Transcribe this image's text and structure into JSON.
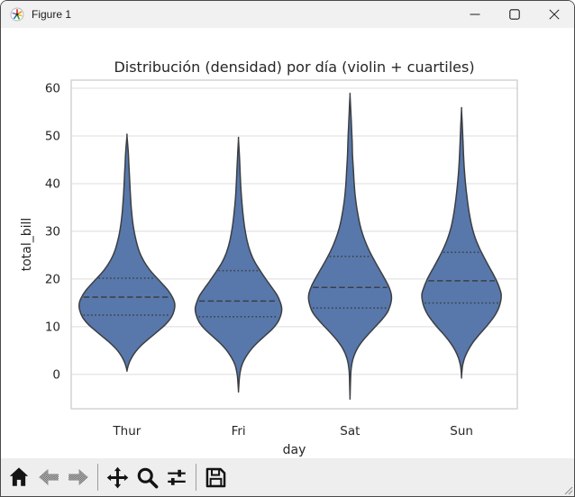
{
  "window": {
    "title": "Figure 1",
    "icons": [
      "matplotlib-logo-icon",
      "minimize-icon",
      "maximize-icon",
      "close-icon"
    ]
  },
  "toolbar": {
    "buttons": [
      {
        "id": "home",
        "icon": "home-icon",
        "enabled": true
      },
      {
        "id": "back",
        "icon": "back-arrow-icon",
        "enabled": false
      },
      {
        "id": "forward",
        "icon": "forward-arrow-icon",
        "enabled": false
      },
      {
        "id": "pan",
        "icon": "pan-arrows-icon",
        "enabled": true
      },
      {
        "id": "zoom-to-rect",
        "icon": "magnifier-icon",
        "enabled": true
      },
      {
        "id": "configure-subplots",
        "icon": "sliders-icon",
        "enabled": true
      },
      {
        "id": "save",
        "icon": "floppy-disk-icon",
        "enabled": true
      }
    ]
  },
  "chart_data": {
    "type": "violin",
    "title": "Distribución (densidad) por día (violin + cuartiles)",
    "xlabel": "day",
    "ylabel": "total_bill",
    "categories": [
      "Thur",
      "Fri",
      "Sat",
      "Sun"
    ],
    "yticks": [
      0,
      10,
      20,
      30,
      40,
      50,
      60
    ],
    "ylim": [
      -7.2,
      61.7
    ],
    "grid": true,
    "inner": "quartile",
    "legend": "none",
    "fill_color": "#5878ab",
    "edge_color": "#3b3e43",
    "grid_color": "#dcdcdc",
    "spine_color": "#c9c9c9",
    "text_color": "#262626",
    "series": [
      {
        "name": "Thur",
        "q1": 12.44,
        "median": 16.2,
        "q3": 20.16,
        "kde_min": 0.8,
        "kde_max": 50.0,
        "max_halfwidth": 53,
        "profile": [
          [
            50,
            0
          ],
          [
            47,
            0.025
          ],
          [
            44,
            0.04
          ],
          [
            41,
            0.055
          ],
          [
            38,
            0.07
          ],
          [
            35,
            0.09
          ],
          [
            32,
            0.12
          ],
          [
            29,
            0.17
          ],
          [
            26,
            0.25
          ],
          [
            24,
            0.34
          ],
          [
            22,
            0.47
          ],
          [
            20.5,
            0.6
          ],
          [
            19,
            0.74
          ],
          [
            17.5,
            0.87
          ],
          [
            16,
            0.96
          ],
          [
            14.8,
            1.0
          ],
          [
            13.5,
            0.99
          ],
          [
            12,
            0.93
          ],
          [
            10.5,
            0.81
          ],
          [
            9,
            0.64
          ],
          [
            7.5,
            0.46
          ],
          [
            6,
            0.29
          ],
          [
            4.5,
            0.16
          ],
          [
            3,
            0.07
          ],
          [
            1.8,
            0.025
          ],
          [
            0.8,
            0
          ]
        ]
      },
      {
        "name": "Fri",
        "q1": 12.09,
        "median": 15.38,
        "q3": 21.75,
        "kde_min": -3.5,
        "kde_max": 49.3,
        "max_halfwidth": 48,
        "profile": [
          [
            49.3,
            0
          ],
          [
            46,
            0.02
          ],
          [
            43,
            0.035
          ],
          [
            40,
            0.05
          ],
          [
            37,
            0.07
          ],
          [
            34,
            0.1
          ],
          [
            31,
            0.14
          ],
          [
            28,
            0.2
          ],
          [
            25.5,
            0.28
          ],
          [
            23.5,
            0.38
          ],
          [
            21.5,
            0.52
          ],
          [
            19.5,
            0.67
          ],
          [
            18,
            0.79
          ],
          [
            16.5,
            0.9
          ],
          [
            15,
            0.97
          ],
          [
            13.8,
            1.0
          ],
          [
            12.5,
            0.98
          ],
          [
            11,
            0.91
          ],
          [
            9.5,
            0.78
          ],
          [
            8,
            0.6
          ],
          [
            6.5,
            0.42
          ],
          [
            5,
            0.27
          ],
          [
            3.5,
            0.16
          ],
          [
            2,
            0.08
          ],
          [
            0,
            0.03
          ],
          [
            -2,
            0.01
          ],
          [
            -3.5,
            0
          ]
        ]
      },
      {
        "name": "Sat",
        "q1": 13.91,
        "median": 18.24,
        "q3": 24.74,
        "kde_min": -4.9,
        "kde_max": 58.5,
        "max_halfwidth": 46,
        "profile": [
          [
            58.5,
            0
          ],
          [
            55,
            0.02
          ],
          [
            52,
            0.035
          ],
          [
            49,
            0.05
          ],
          [
            46,
            0.06
          ],
          [
            43,
            0.08
          ],
          [
            40,
            0.1
          ],
          [
            37,
            0.13
          ],
          [
            34,
            0.18
          ],
          [
            31,
            0.25
          ],
          [
            28.5,
            0.34
          ],
          [
            26,
            0.46
          ],
          [
            24,
            0.58
          ],
          [
            22,
            0.71
          ],
          [
            20,
            0.84
          ],
          [
            18.5,
            0.93
          ],
          [
            17,
            0.99
          ],
          [
            15.8,
            1.0
          ],
          [
            14.5,
            0.97
          ],
          [
            13,
            0.9
          ],
          [
            11.5,
            0.77
          ],
          [
            10,
            0.61
          ],
          [
            8.5,
            0.45
          ],
          [
            7,
            0.3
          ],
          [
            5.5,
            0.18
          ],
          [
            4,
            0.1
          ],
          [
            2.5,
            0.05
          ],
          [
            0.5,
            0.02
          ],
          [
            -2.5,
            0.008
          ],
          [
            -4.9,
            0
          ]
        ]
      },
      {
        "name": "Sun",
        "q1": 14.99,
        "median": 19.63,
        "q3": 25.6,
        "kde_min": -0.6,
        "kde_max": 55.5,
        "max_halfwidth": 44,
        "profile": [
          [
            55.5,
            0
          ],
          [
            52,
            0.02
          ],
          [
            49,
            0.035
          ],
          [
            46,
            0.05
          ],
          [
            43,
            0.07
          ],
          [
            40,
            0.1
          ],
          [
            37,
            0.14
          ],
          [
            34,
            0.19
          ],
          [
            31,
            0.26
          ],
          [
            28.5,
            0.35
          ],
          [
            26.5,
            0.45
          ],
          [
            24.5,
            0.57
          ],
          [
            22.5,
            0.7
          ],
          [
            21,
            0.8
          ],
          [
            19.5,
            0.89
          ],
          [
            18,
            0.96
          ],
          [
            16.8,
            1.0
          ],
          [
            15.5,
            0.99
          ],
          [
            14,
            0.94
          ],
          [
            12.5,
            0.85
          ],
          [
            11,
            0.72
          ],
          [
            9.5,
            0.57
          ],
          [
            8,
            0.41
          ],
          [
            6.5,
            0.27
          ],
          [
            5,
            0.16
          ],
          [
            3.5,
            0.08
          ],
          [
            2,
            0.03
          ],
          [
            0.7,
            0.01
          ],
          [
            -0.6,
            0
          ]
        ]
      }
    ]
  }
}
